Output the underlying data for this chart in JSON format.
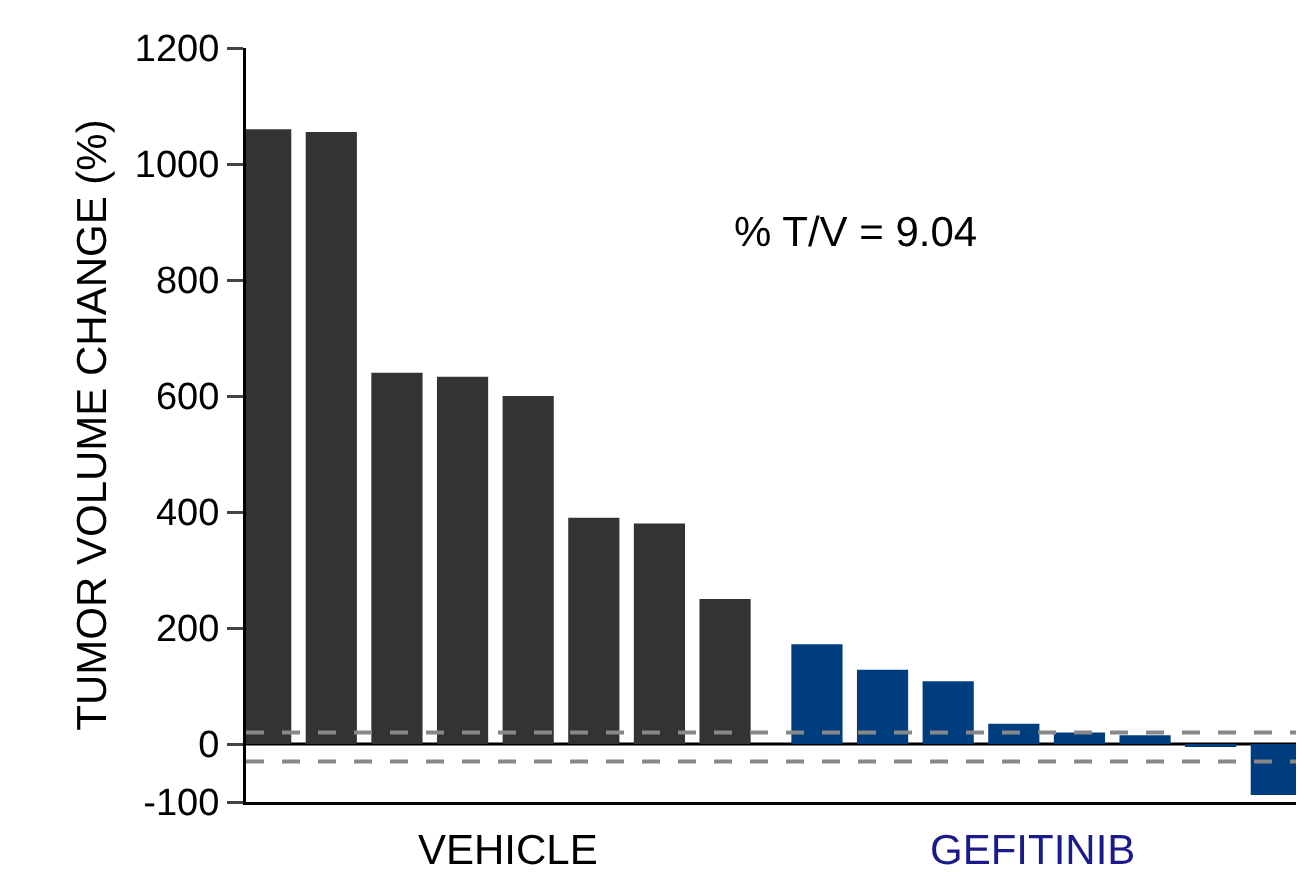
{
  "chart_data": {
    "type": "bar",
    "ylabel": "TUMOR VOLUME CHANGE (%)",
    "categories": [
      null,
      null,
      null,
      null,
      null,
      null,
      null,
      null,
      null,
      null,
      null,
      null,
      null,
      null,
      null,
      null
    ],
    "series": [
      {
        "color": "#333333",
        "values": [
          1060,
          1055,
          640,
          633,
          600,
          390,
          380,
          250,
          null,
          null,
          null,
          null,
          null,
          null,
          null,
          null
        ]
      },
      {
        "color": "#003d7f",
        "values": [
          null,
          null,
          null,
          null,
          null,
          null,
          null,
          null,
          172,
          128,
          108,
          35,
          20,
          15,
          -5,
          -88
        ]
      }
    ],
    "ylim": [
      -100,
      1200
    ],
    "yticks": [
      -100,
      0,
      200,
      400,
      600,
      800,
      1000,
      1200
    ],
    "grid": false,
    "ref_lines": [
      {
        "axis": "y",
        "value": 0,
        "color": "#000000",
        "line_style": "solid"
      },
      {
        "axis": "y",
        "value": 20,
        "color": "#888888",
        "line_style": "dashed"
      },
      {
        "axis": "y",
        "value": -30,
        "color": "#888888",
        "line_style": "dashed"
      }
    ],
    "annotations": [
      "% T/V = 9.04",
      "VEHICLE",
      "GEFITINIB"
    ]
  }
}
